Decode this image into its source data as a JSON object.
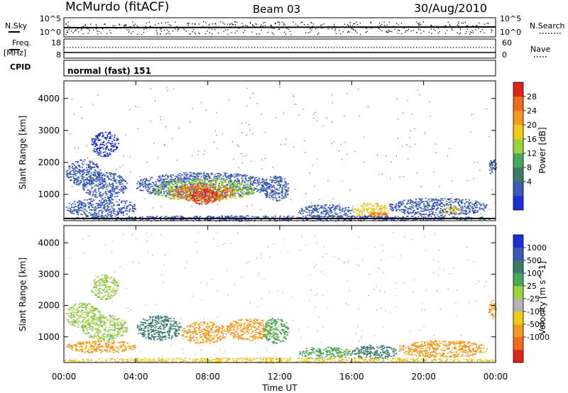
{
  "header": {
    "station": "McMurdo (fitACF)",
    "beam": "Beam 03",
    "date": "30/Aug/2010"
  },
  "strips": {
    "nsky": {
      "label": "N.Sky",
      "ticks": [
        "10^5",
        "10^0"
      ]
    },
    "nsearch": {
      "label": "N.Search",
      "ticks": [
        "10^5",
        "10^0"
      ]
    },
    "freq": {
      "label_top": "Freq.",
      "label_bottom": "[MHz]",
      "ticks": [
        "18",
        "8"
      ]
    },
    "nave": {
      "label": "Nave",
      "ticks": [
        "60",
        "0"
      ]
    },
    "cpid": {
      "label": "CPID",
      "value": "normal (fast) 151"
    }
  },
  "colors": {
    "power": [
      "#1a2fd6",
      "#3a5bb8",
      "#3c7a6a",
      "#48a85a",
      "#9cd23c",
      "#f2cc14",
      "#f39a1e",
      "#ef6a1c",
      "#e0231c"
    ],
    "velocity": [
      "#e0231c",
      "#ef6a1c",
      "#f39a1e",
      "#f2cc14",
      "#b4b4b4",
      "#9cd23c",
      "#48a85a",
      "#3c7a6a",
      "#3a5bb8",
      "#1a2fd6"
    ]
  },
  "chart_data": [
    {
      "type": "heatmap",
      "name": "power",
      "ylabel": "Slant Range [km]",
      "yticks": [
        "4000",
        "3000",
        "2000",
        "1000"
      ],
      "ylim": [
        180,
        4550
      ],
      "xlim": [
        0,
        24
      ],
      "colorbar": {
        "label": "Power [dB]",
        "ticks": [
          "28",
          "24",
          "20",
          "16",
          "12",
          "8",
          "4"
        ]
      },
      "regions": [
        {
          "t0": 0.1,
          "t1": 2.0,
          "r0": 1300,
          "r1": 2100,
          "level": 1
        },
        {
          "t0": 1.0,
          "t1": 3.5,
          "r0": 900,
          "r1": 1700,
          "level": 1
        },
        {
          "t0": 0.1,
          "t1": 4.0,
          "r0": 300,
          "r1": 900,
          "level": 1
        },
        {
          "t0": 1.5,
          "t1": 3.0,
          "r0": 2200,
          "r1": 3000,
          "level": 0
        },
        {
          "t0": 4.0,
          "t1": 11.5,
          "r0": 900,
          "r1": 1700,
          "level": 1
        },
        {
          "t0": 5.0,
          "t1": 10.5,
          "r0": 800,
          "r1": 1500,
          "level": 4
        },
        {
          "t0": 6.0,
          "t1": 9.5,
          "r0": 800,
          "r1": 1350,
          "level": 7
        },
        {
          "t0": 7.0,
          "t1": 8.5,
          "r0": 700,
          "r1": 1200,
          "level": 8
        },
        {
          "t0": 11.0,
          "t1": 12.5,
          "r0": 800,
          "r1": 1600,
          "level": 1
        },
        {
          "t0": 13.0,
          "t1": 16.0,
          "r0": 300,
          "r1": 700,
          "level": 1
        },
        {
          "t0": 16.0,
          "t1": 18.0,
          "r0": 300,
          "r1": 750,
          "level": 5
        },
        {
          "t0": 17.0,
          "t1": 18.0,
          "r0": 250,
          "r1": 500,
          "level": 7
        },
        {
          "t0": 18.0,
          "t1": 23.5,
          "r0": 350,
          "r1": 900,
          "level": 1
        },
        {
          "t0": 21.0,
          "t1": 22.0,
          "r0": 400,
          "r1": 650,
          "level": 5
        },
        {
          "t0": 23.6,
          "t1": 24.0,
          "r0": 1600,
          "r1": 2200,
          "level": 1
        },
        {
          "t0": 0.0,
          "t1": 24.0,
          "r0": 180,
          "r1": 350,
          "level": 1
        }
      ]
    },
    {
      "type": "heatmap",
      "name": "velocity",
      "ylabel": "Slant Range [km]",
      "yticks": [
        "4000",
        "3000",
        "2000",
        "1000"
      ],
      "ylim": [
        180,
        4550
      ],
      "xlim": [
        0,
        24
      ],
      "xlabel": "Time UT",
      "xticks": [
        "00:00",
        "04:00",
        "08:00",
        "12:00",
        "16:00",
        "20:00",
        "00:00"
      ],
      "colorbar": {
        "label": "Velocity [m s^-1]",
        "ticks": [
          "1000",
          "500",
          "100",
          "25",
          "-25",
          "-100",
          "-500",
          "-1000"
        ]
      },
      "regions": [
        {
          "t0": 0.1,
          "t1": 2.0,
          "r0": 1300,
          "r1": 2100,
          "level": 5
        },
        {
          "t0": 1.0,
          "t1": 3.5,
          "r0": 900,
          "r1": 1700,
          "level": 5
        },
        {
          "t0": 0.1,
          "t1": 4.0,
          "r0": 500,
          "r1": 900,
          "level": 2
        },
        {
          "t0": 1.5,
          "t1": 3.0,
          "r0": 2200,
          "r1": 3000,
          "level": 5
        },
        {
          "t0": 4.0,
          "t1": 6.5,
          "r0": 900,
          "r1": 1700,
          "level": 7
        },
        {
          "t0": 6.5,
          "t1": 9.0,
          "r0": 800,
          "r1": 1500,
          "level": 2
        },
        {
          "t0": 9.0,
          "t1": 11.5,
          "r0": 900,
          "r1": 1600,
          "level": 2
        },
        {
          "t0": 11.0,
          "t1": 12.5,
          "r0": 800,
          "r1": 1600,
          "level": 6
        },
        {
          "t0": 13.0,
          "t1": 16.0,
          "r0": 300,
          "r1": 700,
          "level": 6
        },
        {
          "t0": 16.0,
          "t1": 18.5,
          "r0": 300,
          "r1": 750,
          "level": 7
        },
        {
          "t0": 18.5,
          "t1": 23.5,
          "r0": 350,
          "r1": 900,
          "level": 2
        },
        {
          "t0": 23.6,
          "t1": 24.0,
          "r0": 1600,
          "r1": 2200,
          "level": 2
        },
        {
          "t0": 0.0,
          "t1": 24.0,
          "r0": 180,
          "r1": 350,
          "level": 3
        }
      ]
    }
  ]
}
